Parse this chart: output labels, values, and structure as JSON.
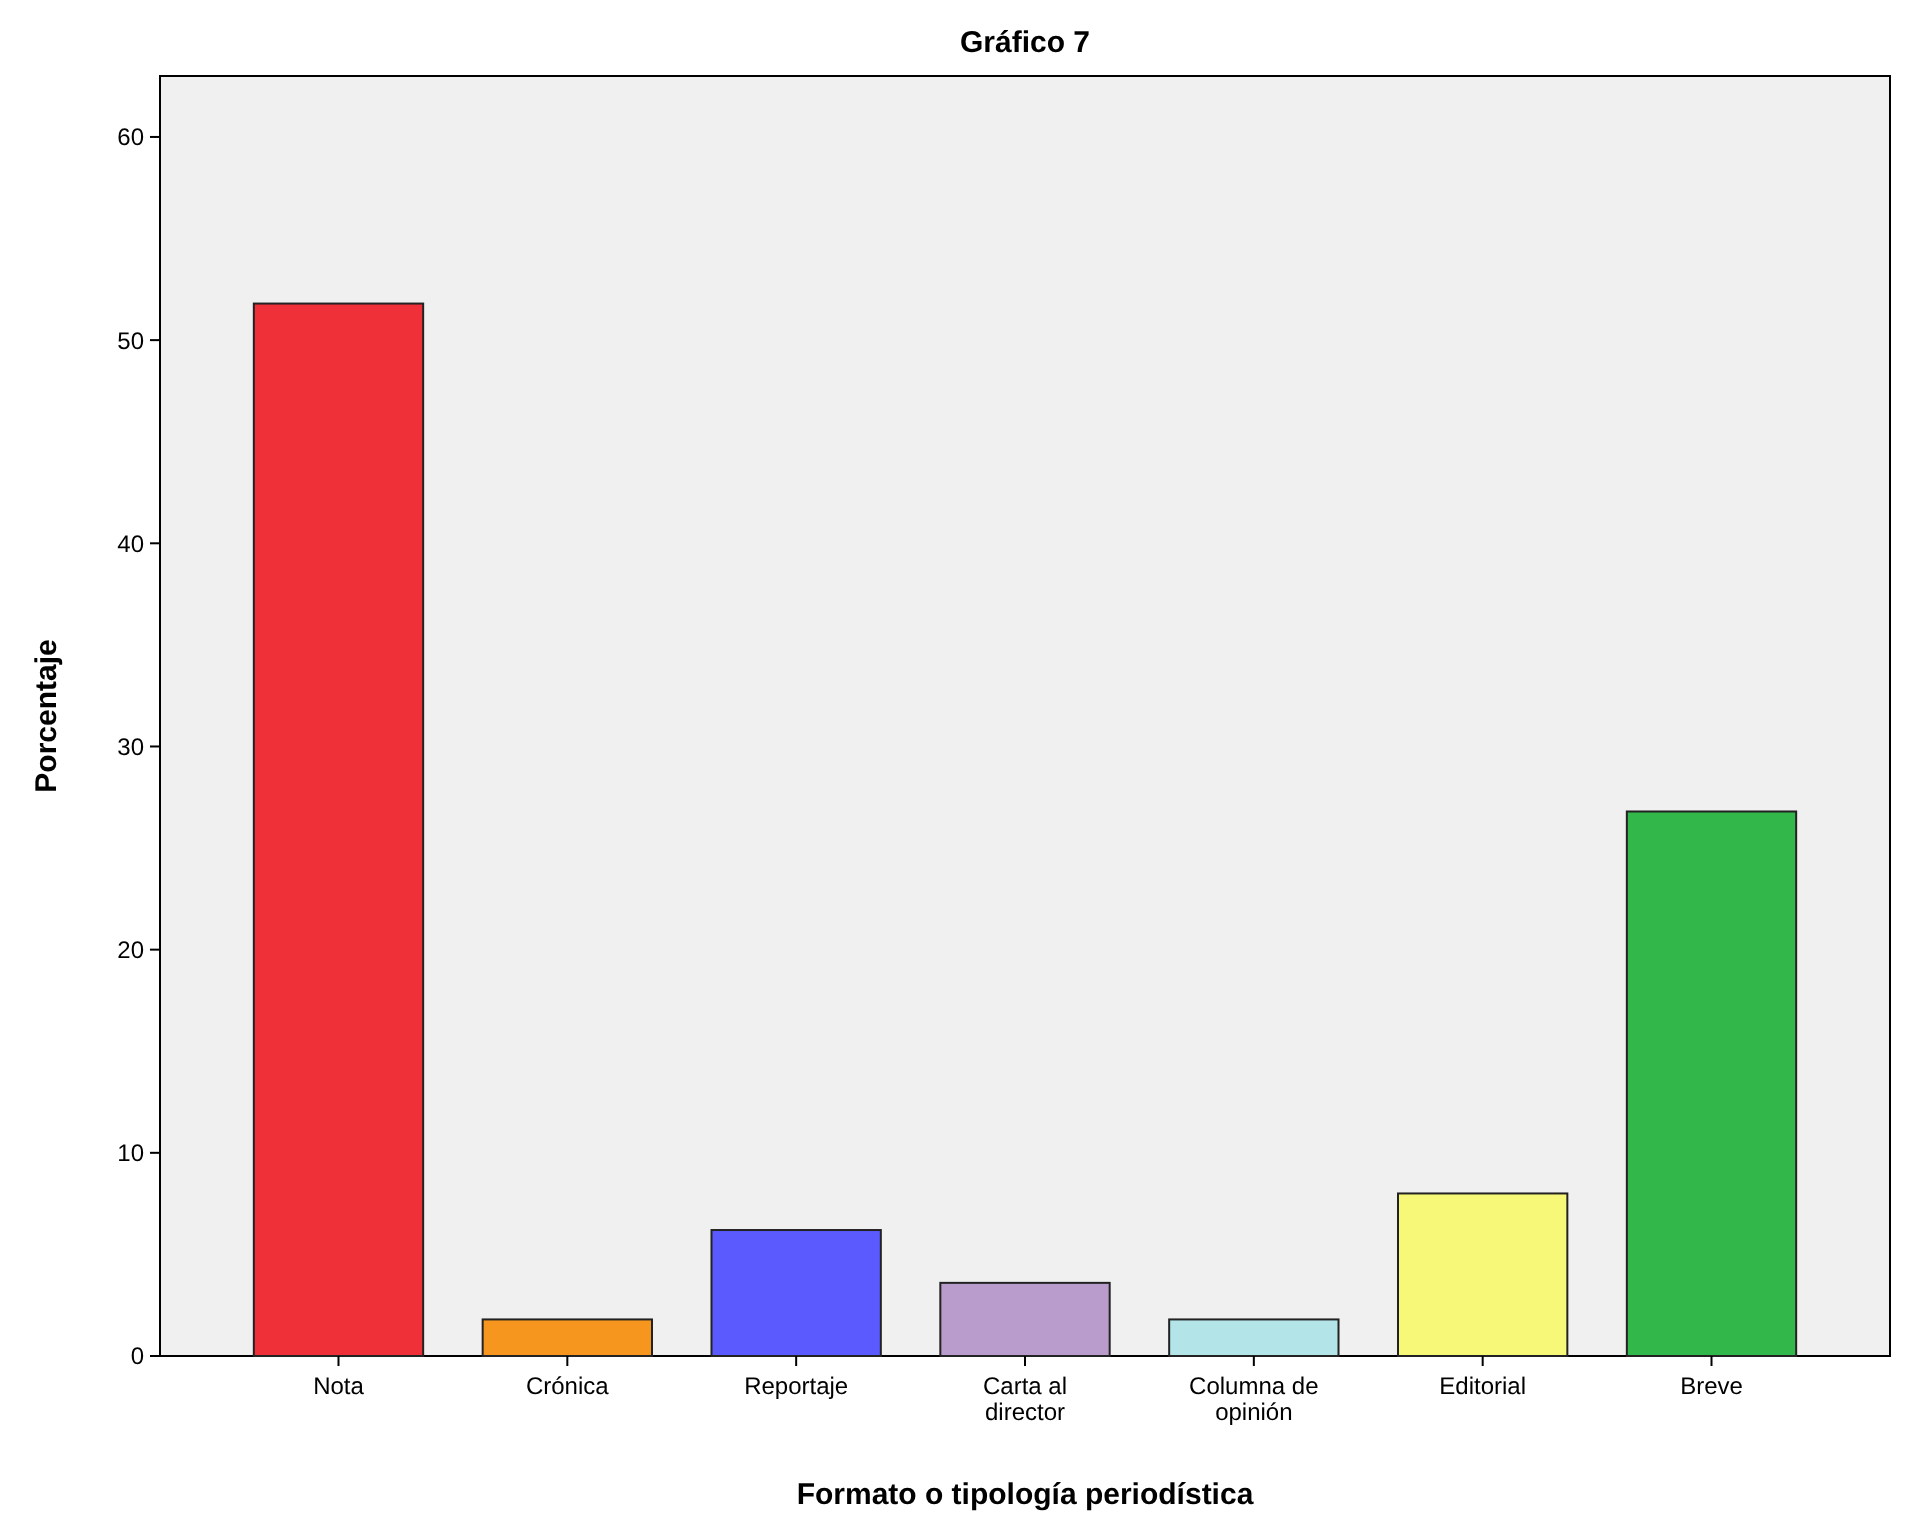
{
  "chart_data": {
    "type": "bar",
    "title": "Gráfico 7",
    "xlabel": "Formato o tipología periodística",
    "ylabel": "Porcentaje",
    "categories": [
      "Nota",
      "Crónica",
      "Reportaje",
      "Carta al director",
      "Columna de opinión",
      "Editorial",
      "Breve"
    ],
    "values": [
      51.8,
      1.8,
      6.2,
      3.6,
      1.8,
      8.0,
      26.8
    ],
    "colors": [
      "#ef3038",
      "#f6961e",
      "#5a5aff",
      "#b99ccc",
      "#b2e4e8",
      "#f8f878",
      "#32b74b"
    ],
    "ylim": [
      0,
      63
    ],
    "yticks": [
      0,
      10,
      20,
      30,
      40,
      50,
      60
    ],
    "grid": false
  }
}
